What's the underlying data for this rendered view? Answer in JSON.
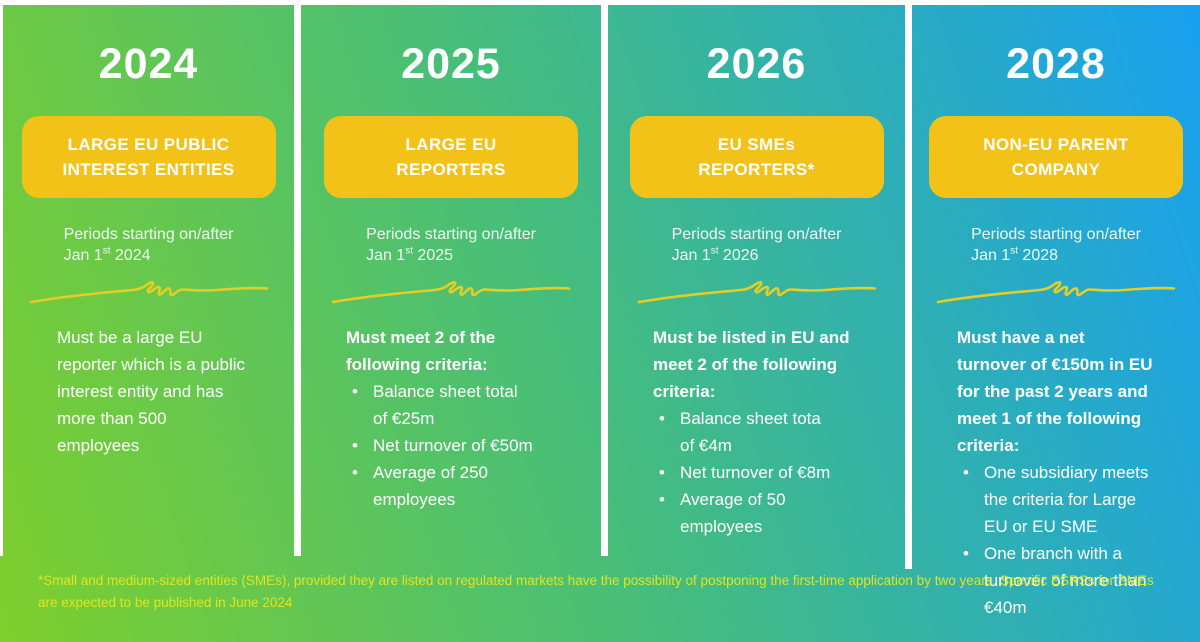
{
  "colors": {
    "background_start": "#7ecf2c",
    "background_mid": "#45bd7d",
    "background_end": "#17a0f0",
    "badge_fill": "#f2c219",
    "badge_text": "#ffffff",
    "divider": "#ffffff",
    "squiggle": "#e4ce24",
    "year_text": "#ffffff",
    "body_text": "#ffffff",
    "footnote_text": "#dfe522"
  },
  "columns": [
    {
      "year": "2024",
      "badge": "LARGE EU PUBLIC\nINTEREST ENTITIES",
      "periods": {
        "line1": "Periods starting on/after",
        "date_pre": "Jan 1",
        "date_sup": "st",
        "date_post": " 2024"
      },
      "body": {
        "intro": "Must be a large EU\nreporter which is a public\ninterest entity and has\nmore than 500\nemployees",
        "intro_bold": false,
        "bullets": []
      }
    },
    {
      "year": "2025",
      "badge": "LARGE EU\nREPORTERS",
      "periods": {
        "line1": "Periods starting on/after",
        "date_pre": "Jan 1",
        "date_sup": "st",
        "date_post": " 2025"
      },
      "body": {
        "intro": "Must meet 2 of the\nfollowing criteria:",
        "intro_bold": true,
        "bullets": [
          "Balance sheet total\nof €25m",
          "Net turnover of €50m",
          "Average of 250\nemployees"
        ]
      }
    },
    {
      "year": "2026",
      "badge": "EU SMEs\nREPORTERS*",
      "periods": {
        "line1": "Periods starting on/after",
        "date_pre": "Jan 1",
        "date_sup": "st",
        "date_post": " 2026"
      },
      "body": {
        "intro": "Must be listed in EU and\nmeet 2 of the following\ncriteria:",
        "intro_bold": true,
        "bullets": [
          "Balance sheet tota\nof €4m",
          "Net turnover of €8m",
          "Average of 50\nemployees"
        ]
      }
    },
    {
      "year": "2028",
      "badge": "NON-EU PARENT\nCOMPANY",
      "periods": {
        "line1": "Periods starting on/after",
        "date_pre": "Jan 1",
        "date_sup": "st",
        "date_post": " 2028"
      },
      "body": {
        "intro": "Must have a net\nturnover of €150m in EU\nfor the past 2 years and\nmeet 1 of the following\ncriteria:",
        "intro_bold": true,
        "bullets": [
          "One subsidiary meets\nthe criteria for Large\nEU or EU SME",
          "One branch with a\nturnover of more than\n€40m"
        ]
      }
    }
  ],
  "footnote": "*Small and medium-sized entities (SMEs), provided they are listed on regulated markets have the possibility of postponing the first-time application by two years. Specific ESRSs for SMEs\nare expected to be published in June 2024"
}
